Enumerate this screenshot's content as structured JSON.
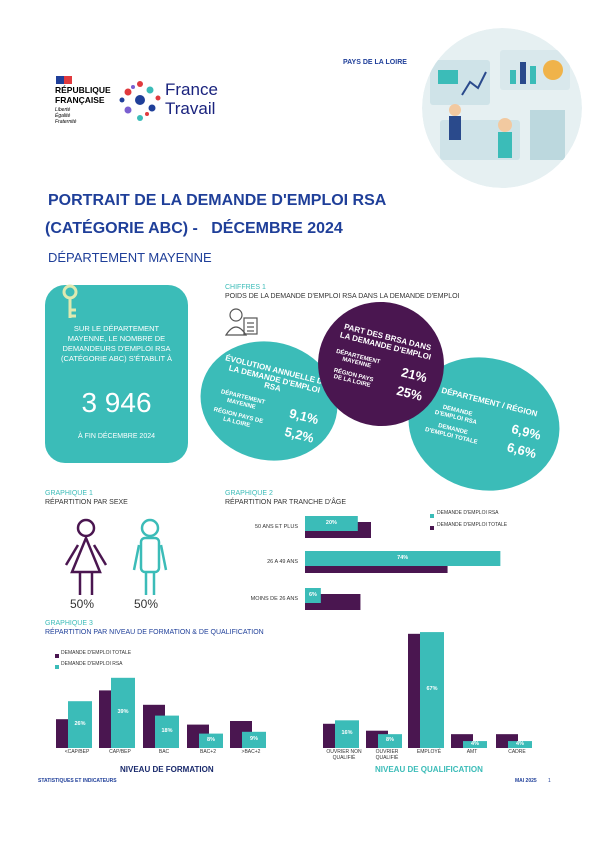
{
  "header": {
    "republique": [
      "RÉPUBLIQUE",
      "FRANÇAISE"
    ],
    "devise": [
      "Liberté",
      "Égalité",
      "Fraternité"
    ],
    "brand": [
      "France",
      "Travail"
    ],
    "region": "PAYS DE LA LOIRE"
  },
  "title": [
    "PORTRAIT DE LA DEMANDE D'EMPLOI RSA",
    "(CATÉGORIE ABC) -   DÉCEMBRE 2024"
  ],
  "subtitle": "DÉPARTEMENT MAYENNE",
  "key_figure": {
    "text": "SUR LE DÉPARTEMENT MAYENNE, LE NOMBRE DE DEMANDEURS D'EMPLOI RSA (CATÉGORIE ABC) S'ÉTABLIT À",
    "value": "3 946",
    "date": "À FIN DÉCEMBRE 2024"
  },
  "chiffres": {
    "label": "CHIFFRES 1",
    "title": "POIDS DE LA DEMANDE D'EMPLOI RSA DANS LA DEMANDE D'EMPLOI",
    "bubbles": [
      {
        "title": "ÉVOLUTION ANNUELLE DE LA DEMANDE D'EMPLOI RSA",
        "color": "#3bbcb8",
        "rows": [
          {
            "label": "DÉPARTEMENT MAYENNE",
            "value": "9,1%"
          },
          {
            "label": "RÉGION PAYS DE LA LOIRE",
            "value": "5,2%"
          }
        ]
      },
      {
        "title": "PART DES BRSA DANS LA DEMANDE D'EMPLOI",
        "color": "#4a1650",
        "rows": [
          {
            "label": "DÉPARTEMENT MAYENNE",
            "value": "21%"
          },
          {
            "label": "RÉGION PAYS DE LA LOIRE",
            "value": "25%"
          }
        ]
      },
      {
        "title": "DÉPARTEMENT / RÉGION",
        "color": "#3bbcb8",
        "rows": [
          {
            "label": "DEMANDE D'EMPLOI RSA",
            "value": "6,9%"
          },
          {
            "label": "DEMANDE D'EMPLOI TOTALE",
            "value": "6,6%"
          }
        ]
      }
    ]
  },
  "graphique1": {
    "label": "GRAPHIQUE 1",
    "title": "RÉPARTITION PAR SEXE",
    "items": [
      {
        "value": "50%"
      },
      {
        "value": "50%"
      }
    ]
  },
  "graphique2": {
    "label": "GRAPHIQUE 2",
    "title": "RÉPARTITION PAR TRANCHE D'ÂGE",
    "type": "hbar",
    "categories": [
      "50 ANS ET PLUS",
      "26 A 49 ANS",
      "MOINS DE 26 ANS"
    ],
    "series": [
      {
        "name": "DEMANDE D'EMPLOI RSA",
        "color": "#3bbcb8",
        "values": [
          20,
          74,
          6
        ],
        "value_labels": [
          "20%",
          "74%",
          "6%"
        ]
      },
      {
        "name": "DEMANDE D'EMPLOI TOTALE",
        "color": "#4a1650",
        "values": [
          25,
          54,
          21
        ]
      }
    ]
  },
  "graphique3": {
    "label": "GRAPHIQUE 3",
    "title": "RÉPARTITION PAR NIVEAU DE FORMATION & DE QUALIFICATION",
    "charts": [
      {
        "type": "bar",
        "xlabel": "NIVEAU DE FORMATION",
        "categories": [
          "<CAP/BEP",
          "CAP/BEP",
          "BAC",
          "BAC+2",
          ">BAC+2"
        ],
        "series": [
          {
            "name": "DEMANDE D'EMPLOI TOTALE",
            "color": "#4a1650",
            "values": [
              16,
              32,
              24,
              13,
              15
            ]
          },
          {
            "name": "DEMANDE D'EMPLOI RSA",
            "color": "#3bbcb8",
            "values": [
              26,
              39,
              18,
              8,
              9
            ],
            "value_labels": [
              "26%",
              "39%",
              "18%",
              "8%",
              "9%"
            ]
          }
        ]
      },
      {
        "type": "bar",
        "xlabel": "NIVEAU DE QUALIFICATION",
        "categories": [
          "OUVRIER NON QUALIFIÉ",
          "OUVRIER QUALIFIÉ",
          "EMPLOYÉ",
          "AMT",
          "CADRE"
        ],
        "series": [
          {
            "color": "#4a1650",
            "values": [
              14,
              10,
              66,
              8,
              8
            ]
          },
          {
            "color": "#3bbcb8",
            "values": [
              16,
              8,
              67,
              4,
              4
            ],
            "value_labels": [
              "16%",
              "8%",
              "67%",
              "4%",
              "4%"
            ]
          }
        ]
      }
    ]
  },
  "footer": {
    "left": "STATISTIQUES ET INDICATEURS",
    "date": "MAI 2025",
    "page": "1"
  }
}
